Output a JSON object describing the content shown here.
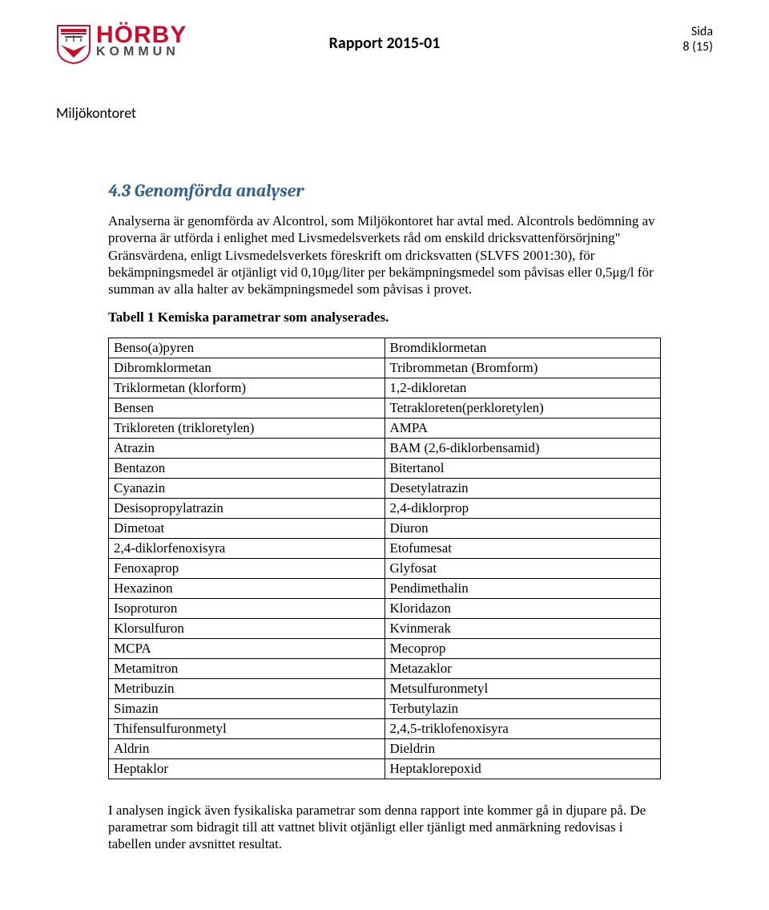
{
  "header": {
    "logo": {
      "main": "HÖRBY",
      "sub": "KOMMUN"
    },
    "report_title": "Rapport 2015-01",
    "side_label": "Sida",
    "page_num": "8 (15)",
    "department": "Miljökontoret"
  },
  "section": {
    "heading": "4.3 Genomförda analyser",
    "intro": "Analyserna är genomförda av Alcontrol, som Miljökontoret har avtal med. Alcontrols bedömning av proverna är utförda i enlighet med Livsmedelsverkets råd om enskild dricksvattenförsörjning\" Gränsvärdena, enligt Livsmedelsverkets föreskrift om dricksvatten (SLVFS 2001:30), för bekämpningsmedel är otjänligt vid 0,10μg/liter per bekämpningsmedel som påvisas eller 0,5μg/l för summan av alla halter av bekämpningsmedel som påvisas i provet.",
    "table_caption": "Tabell 1 Kemiska parametrar som analyserades.",
    "footer_para": "I analysen ingick även fysikaliska parametrar som denna rapport inte kommer gå in djupare på. De parametrar som bidragit till att vattnet blivit otjänligt eller tjänligt med anmärkning redovisas i tabellen under avsnittet resultat."
  },
  "table": {
    "rows": [
      [
        "Benso(a)pyren",
        "Bromdiklormetan"
      ],
      [
        "Dibromklormetan",
        "Tribrommetan (Bromform)"
      ],
      [
        "Triklormetan (klorform)",
        "1,2-dikloretan"
      ],
      [
        "Bensen",
        "Tetrakloreten(perkloretylen)"
      ],
      [
        "Trikloreten (trikloretylen)",
        "AMPA"
      ],
      [
        "Atrazin",
        "BAM (2,6-diklorbensamid)"
      ],
      [
        "Bentazon",
        "Bitertanol"
      ],
      [
        "Cyanazin",
        "Desetylatrazin"
      ],
      [
        "Desisopropylatrazin",
        "2,4-diklorprop"
      ],
      [
        "Dimetoat",
        "Diuron"
      ],
      [
        "2,4-diklorfenoxisyra",
        "Etofumesat"
      ],
      [
        "Fenoxaprop",
        "Glyfosat"
      ],
      [
        "Hexazinon",
        "Pendimethalin"
      ],
      [
        "Isoproturon",
        "Kloridazon"
      ],
      [
        "Klorsulfuron",
        "Kvinmerak"
      ],
      [
        "MCPA",
        "Mecoprop"
      ],
      [
        "Metamitron",
        "Metazaklor"
      ],
      [
        "Metribuzin",
        "Metsulfuronmetyl"
      ],
      [
        "Simazin",
        "Terbutylazin"
      ],
      [
        "Thifensulfuronmetyl",
        "2,4,5-triklofenoxisyra"
      ],
      [
        "Aldrin",
        "Dieldrin"
      ],
      [
        "Heptaklor",
        "Heptaklorepoxid"
      ]
    ]
  },
  "colors": {
    "brand_red": "#c8102e",
    "brand_gray": "#4a4a4a",
    "heading_blue": "#365f91",
    "text": "#000000",
    "background": "#ffffff",
    "border": "#000000"
  }
}
